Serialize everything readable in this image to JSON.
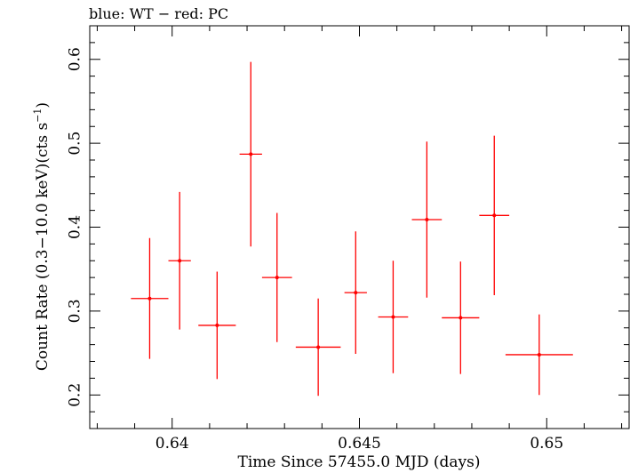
{
  "chart_data": {
    "type": "scatter",
    "title": "blue: WT − red: PC",
    "xlabel": "Time Since 57455.0 MJD (days)",
    "ylabel_main": "Count Rate (0.3−10.0 keV)(cts s",
    "ylabel_sup": "−1",
    "ylabel_end": ")",
    "xlim": [
      0.6378,
      0.6522
    ],
    "ylim": [
      0.16,
      0.64
    ],
    "x_ticks": [
      {
        "value": 0.64,
        "label": "0.64"
      },
      {
        "value": 0.645,
        "label": "0.645"
      },
      {
        "value": 0.65,
        "label": "0.65"
      }
    ],
    "y_ticks": [
      {
        "value": 0.2,
        "label": "0.2"
      },
      {
        "value": 0.3,
        "label": "0.3"
      },
      {
        "value": 0.4,
        "label": "0.4"
      },
      {
        "value": 0.5,
        "label": "0.5"
      },
      {
        "value": 0.6,
        "label": "0.6"
      }
    ],
    "grid": false,
    "series": [
      {
        "color": "#ff0000",
        "points": [
          {
            "x": 0.6394,
            "y": 0.315,
            "xerr": 0.0005,
            "yerr_lo": 0.072,
            "yerr_hi": 0.072
          },
          {
            "x": 0.6402,
            "y": 0.36,
            "xerr": 0.0003,
            "yerr_lo": 0.082,
            "yerr_hi": 0.082
          },
          {
            "x": 0.6412,
            "y": 0.283,
            "xerr": 0.0005,
            "yerr_lo": 0.064,
            "yerr_hi": 0.064
          },
          {
            "x": 0.6421,
            "y": 0.487,
            "xerr": 0.0003,
            "yerr_lo": 0.11,
            "yerr_hi": 0.11
          },
          {
            "x": 0.6428,
            "y": 0.34,
            "xerr": 0.0004,
            "yerr_lo": 0.077,
            "yerr_hi": 0.077
          },
          {
            "x": 0.6439,
            "y": 0.257,
            "xerr": 0.0006,
            "yerr_lo": 0.058,
            "yerr_hi": 0.058
          },
          {
            "x": 0.6449,
            "y": 0.322,
            "xerr": 0.0003,
            "yerr_lo": 0.073,
            "yerr_hi": 0.073
          },
          {
            "x": 0.6459,
            "y": 0.293,
            "xerr": 0.0004,
            "yerr_lo": 0.067,
            "yerr_hi": 0.067
          },
          {
            "x": 0.6468,
            "y": 0.409,
            "xerr": 0.0004,
            "yerr_lo": 0.093,
            "yerr_hi": 0.093
          },
          {
            "x": 0.6477,
            "y": 0.292,
            "xerr": 0.0005,
            "yerr_lo": 0.067,
            "yerr_hi": 0.067
          },
          {
            "x": 0.6486,
            "y": 0.414,
            "xerr": 0.0004,
            "yerr_lo": 0.095,
            "yerr_hi": 0.095
          },
          {
            "x": 0.6498,
            "y": 0.248,
            "xerr": 0.0009,
            "yerr_lo": 0.048,
            "yerr_hi": 0.048
          }
        ]
      }
    ]
  }
}
